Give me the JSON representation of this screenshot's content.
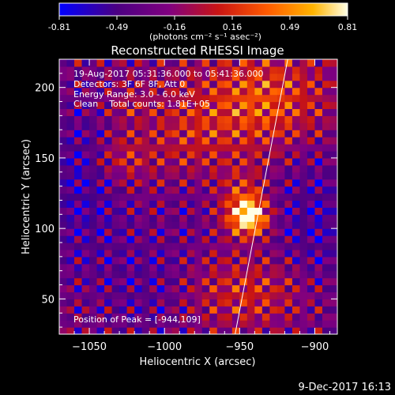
{
  "colorbar": {
    "ticks": [
      "-0.81",
      "-0.49",
      "-0.16",
      "0.16",
      "0.49",
      "0.81"
    ],
    "unit_label": "(photons cm⁻² s⁻¹ asec⁻²)"
  },
  "chart_data": {
    "type": "heatmap",
    "title": "Reconstructed RHESSI Image",
    "xlabel": "Heliocentric X (arcsec)",
    "ylabel": "Heliocentric Y (arcsec)",
    "xlim": [
      -1070,
      -885
    ],
    "ylim": [
      25,
      220
    ],
    "x_ticks": [
      -1050,
      -1000,
      -950,
      -900
    ],
    "y_ticks": [
      50,
      100,
      150,
      200
    ],
    "x_tick_labels": [
      "−1050",
      "−1000",
      "−950",
      "−900"
    ],
    "y_tick_labels": [
      "50",
      "100",
      "150",
      "200"
    ],
    "color_range": [
      -0.81,
      0.81
    ],
    "colormap": [
      "#0000ff",
      "#4b0082",
      "#800080",
      "#c81414",
      "#ff5a00",
      "#ffb400",
      "#ffffe6"
    ],
    "peak": {
      "x": -944,
      "y": 109,
      "value": 0.81
    },
    "limb_line": [
      [
        -953,
        25
      ],
      [
        -918,
        220
      ]
    ],
    "annotations": [
      "19-Aug-2017 05:31:36.000 to 05:41:36.000",
      "Detectors: 3F 6F 8F, Att 0",
      "Energy Range: 3.0 - 6.0 keV",
      "Clean    Total counts: 1.81E+05",
      "Position of Peak = [-944,109]"
    ]
  },
  "footer": {
    "date": "9-Dec-2017 16:13"
  }
}
